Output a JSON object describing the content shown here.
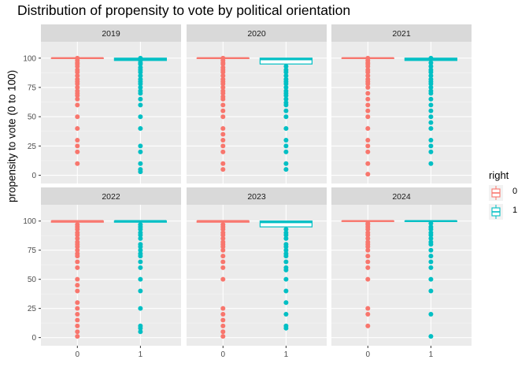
{
  "chart_data": {
    "type": "box",
    "title": "Distribution of propensity to vote by political orientation",
    "xlabel": "",
    "ylabel": "propensity to vote (0 to 100)",
    "ylim": [
      -7,
      114
    ],
    "y_ticks": [
      0,
      25,
      50,
      75,
      100
    ],
    "x_categories": [
      "0",
      "1"
    ],
    "legend": {
      "title": "right",
      "position": "right",
      "entries": [
        "0",
        "1"
      ]
    },
    "colors": {
      "0": "#F8766D",
      "1": "#00BFC4"
    },
    "facets": [
      {
        "label": "2019",
        "groups": [
          {
            "x": "0",
            "q1": 100,
            "median": 100,
            "q3": 100,
            "outliers": [
              100,
              98,
              96,
              95,
              93,
              90,
              88,
              85,
              82,
              80,
              78,
              75,
              72,
              70,
              68,
              65,
              60,
              50,
              40,
              30,
              25,
              20,
              10
            ]
          },
          {
            "x": "1",
            "q1": 98,
            "median": 99,
            "q3": 100,
            "outliers": [
              100,
              98,
              96,
              95,
              92,
              90,
              88,
              85,
              82,
              80,
              78,
              75,
              72,
              70,
              65,
              60,
              50,
              40,
              25,
              20,
              10,
              5,
              3
            ]
          }
        ]
      },
      {
        "label": "2020",
        "groups": [
          {
            "x": "0",
            "q1": 100,
            "median": 100,
            "q3": 100,
            "outliers": [
              100,
              98,
              96,
              95,
              92,
              90,
              88,
              85,
              82,
              80,
              78,
              75,
              72,
              70,
              67,
              65,
              60,
              55,
              50,
              40,
              35,
              30,
              25,
              20,
              10,
              5
            ]
          },
          {
            "x": "1",
            "q1": 95,
            "median": 99,
            "q3": 100,
            "outliers": [
              93,
              90,
              88,
              85,
              82,
              80,
              78,
              75,
              72,
              70,
              68,
              65,
              62,
              60,
              55,
              50,
              40,
              30,
              25,
              20,
              10,
              5
            ]
          }
        ]
      },
      {
        "label": "2021",
        "groups": [
          {
            "x": "0",
            "q1": 100,
            "median": 100,
            "q3": 100,
            "outliers": [
              100,
              98,
              96,
              95,
              93,
              90,
              88,
              85,
              82,
              80,
              78,
              75,
              70,
              65,
              60,
              55,
              50,
              40,
              30,
              25,
              20,
              10,
              1
            ]
          },
          {
            "x": "1",
            "q1": 98,
            "median": 99,
            "q3": 100,
            "outliers": [
              100,
              96,
              93,
              90,
              88,
              85,
              82,
              80,
              78,
              75,
              72,
              70,
              65,
              60,
              55,
              50,
              45,
              40,
              30,
              25,
              20,
              10
            ]
          }
        ]
      },
      {
        "label": "2022",
        "groups": [
          {
            "x": "0",
            "q1": 99,
            "median": 100,
            "q3": 100,
            "outliers": [
              97,
              95,
              93,
              90,
              88,
              85,
              82,
              80,
              78,
              75,
              72,
              70,
              65,
              60,
              50,
              45,
              40,
              30,
              25,
              20,
              15,
              10,
              5,
              1
            ]
          },
          {
            "x": "1",
            "q1": 99,
            "median": 100,
            "q3": 100,
            "outliers": [
              97,
              95,
              93,
              90,
              88,
              85,
              80,
              78,
              75,
              72,
              70,
              65,
              60,
              50,
              40,
              25,
              10,
              8,
              5
            ]
          }
        ]
      },
      {
        "label": "2023",
        "groups": [
          {
            "x": "0",
            "q1": 99,
            "median": 100,
            "q3": 100,
            "outliers": [
              97,
              95,
              93,
              90,
              88,
              85,
              82,
              80,
              78,
              75,
              70,
              65,
              60,
              50,
              25,
              20,
              15,
              10,
              5,
              1
            ]
          },
          {
            "x": "1",
            "q1": 95,
            "median": 99,
            "q3": 100,
            "outliers": [
              93,
              90,
              88,
              85,
              80,
              78,
              75,
              72,
              70,
              65,
              60,
              58,
              50,
              40,
              30,
              20,
              10,
              8
            ]
          }
        ]
      },
      {
        "label": "2024",
        "groups": [
          {
            "x": "0",
            "q1": 100,
            "median": 100,
            "q3": 100,
            "outliers": [
              98,
              97,
              95,
              93,
              90,
              88,
              85,
              82,
              80,
              78,
              75,
              70,
              65,
              60,
              50,
              25,
              20,
              10
            ]
          },
          {
            "x": "1",
            "q1": 100,
            "median": 100,
            "q3": 100,
            "outliers": [
              98,
              95,
              93,
              90,
              88,
              85,
              82,
              80,
              75,
              70,
              65,
              60,
              50,
              40,
              20,
              1
            ]
          }
        ]
      }
    ]
  }
}
